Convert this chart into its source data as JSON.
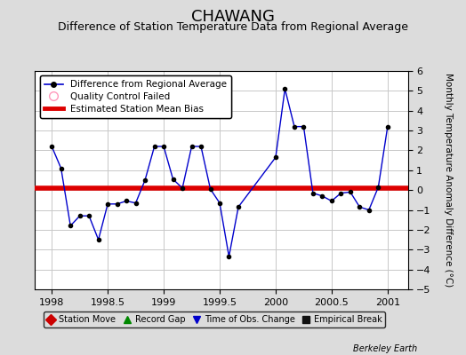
{
  "title": "CHAWANG",
  "subtitle": "Difference of Station Temperature Data from Regional Average",
  "ylabel": "Monthly Temperature Anomaly Difference (°C)",
  "bias_value": 0.1,
  "xlim": [
    1997.85,
    2001.18
  ],
  "ylim": [
    -5,
    6
  ],
  "yticks": [
    -5,
    -4,
    -3,
    -2,
    -1,
    0,
    1,
    2,
    3,
    4,
    5,
    6
  ],
  "xticks": [
    1998,
    1998.5,
    1999,
    1999.5,
    2000,
    2000.5,
    2001
  ],
  "background_color": "#dcdcdc",
  "plot_bg_color": "#ffffff",
  "grid_color": "#c8c8c8",
  "line_color": "#0000cc",
  "bias_color": "#dd0000",
  "title_fontsize": 13,
  "subtitle_fontsize": 9,
  "data_x": [
    1998.0,
    1998.083,
    1998.167,
    1998.25,
    1998.333,
    1998.417,
    1998.5,
    1998.583,
    1998.667,
    1998.75,
    1998.833,
    1998.917,
    1999.0,
    1999.083,
    1999.167,
    1999.25,
    1999.333,
    1999.417,
    1999.5,
    1999.583,
    1999.667,
    2000.0,
    2000.083,
    2000.167,
    2000.25,
    2000.333,
    2000.417,
    2000.5,
    2000.583,
    2000.667,
    2000.75,
    2000.833,
    2000.917,
    2001.0
  ],
  "data_y": [
    2.2,
    1.1,
    -1.8,
    -1.3,
    -1.3,
    -2.5,
    -0.7,
    -0.7,
    -0.55,
    -0.65,
    0.5,
    2.2,
    2.2,
    0.55,
    0.1,
    2.2,
    2.2,
    0.05,
    -0.65,
    -3.35,
    -0.85,
    1.65,
    5.1,
    3.2,
    3.2,
    -0.15,
    -0.3,
    -0.55,
    -0.15,
    -0.1,
    -0.85,
    -1.0,
    0.15,
    3.2
  ],
  "legend1_entries": [
    {
      "label": "Difference from Regional Average"
    },
    {
      "label": "Quality Control Failed"
    },
    {
      "label": "Estimated Station Mean Bias"
    }
  ],
  "legend2_entries": [
    {
      "label": "Station Move",
      "color": "#cc0000",
      "marker": "D"
    },
    {
      "label": "Record Gap",
      "color": "#008800",
      "marker": "^"
    },
    {
      "label": "Time of Obs. Change",
      "color": "#0000cc",
      "marker": "v"
    },
    {
      "label": "Empirical Break",
      "color": "#111111",
      "marker": "s"
    }
  ],
  "watermark": "Berkeley Earth"
}
